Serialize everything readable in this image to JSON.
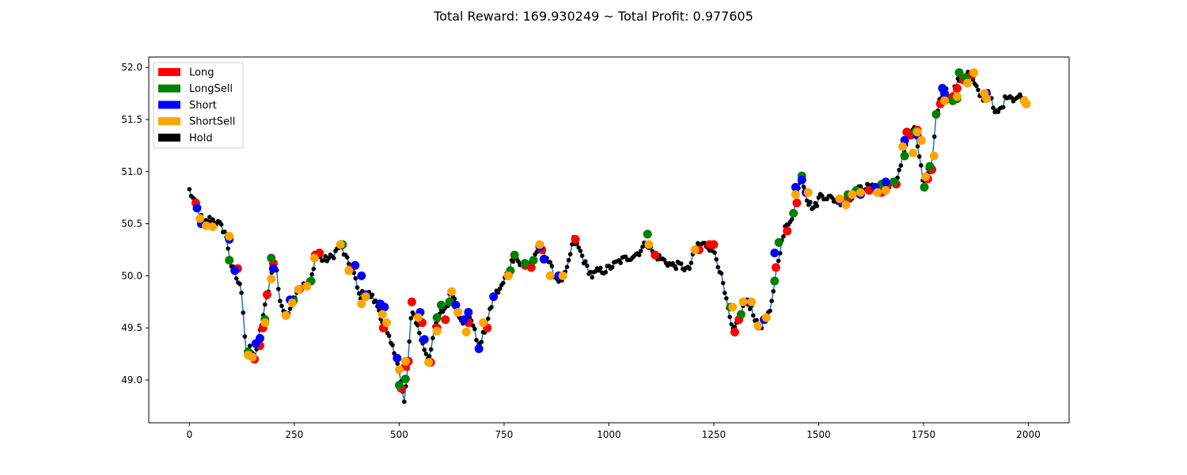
{
  "chart_data": {
    "type": "line",
    "title": "Total Reward: 169.930249 ~ Total Profit: 0.977605",
    "xlabel": "",
    "ylabel": "",
    "xlim": [
      -97,
      2097
    ],
    "ylim": [
      48.59,
      52.1
    ],
    "x_ticks": [
      0,
      250,
      500,
      750,
      1000,
      1250,
      1500,
      1750,
      2000
    ],
    "y_ticks": [
      49.0,
      49.5,
      50.0,
      50.5,
      51.0,
      51.5,
      52.0
    ],
    "grid": false,
    "legend_position": "top-left",
    "line_color": "#1f77b4",
    "price_path": [
      [
        0,
        50.82
      ],
      [
        10,
        50.72
      ],
      [
        20,
        50.62
      ],
      [
        35,
        50.5
      ],
      [
        50,
        50.55
      ],
      [
        70,
        50.5
      ],
      [
        85,
        50.42
      ],
      [
        100,
        50.1
      ],
      [
        115,
        49.95
      ],
      [
        125,
        49.85
      ],
      [
        135,
        49.25
      ],
      [
        145,
        49.3
      ],
      [
        155,
        49.2
      ],
      [
        165,
        49.4
      ],
      [
        175,
        49.6
      ],
      [
        185,
        49.8
      ],
      [
        195,
        50.05
      ],
      [
        205,
        50.15
      ],
      [
        215,
        49.78
      ],
      [
        228,
        49.62
      ],
      [
        240,
        49.7
      ],
      [
        255,
        49.85
      ],
      [
        270,
        49.9
      ],
      [
        290,
        49.95
      ],
      [
        300,
        50.2
      ],
      [
        320,
        50.15
      ],
      [
        340,
        50.18
      ],
      [
        360,
        50.3
      ],
      [
        375,
        50.15
      ],
      [
        390,
        50.05
      ],
      [
        405,
        49.8
      ],
      [
        420,
        49.85
      ],
      [
        435,
        49.8
      ],
      [
        450,
        49.7
      ],
      [
        465,
        49.5
      ],
      [
        480,
        49.35
      ],
      [
        495,
        49.2
      ],
      [
        505,
        48.95
      ],
      [
        512,
        48.78
      ],
      [
        520,
        49.1
      ],
      [
        530,
        49.7
      ],
      [
        545,
        49.5
      ],
      [
        555,
        49.35
      ],
      [
        570,
        49.2
      ],
      [
        585,
        49.5
      ],
      [
        600,
        49.65
      ],
      [
        615,
        49.72
      ],
      [
        625,
        49.88
      ],
      [
        640,
        49.65
      ],
      [
        655,
        49.55
      ],
      [
        670,
        49.62
      ],
      [
        690,
        49.3
      ],
      [
        710,
        49.55
      ],
      [
        725,
        49.8
      ],
      [
        745,
        49.9
      ],
      [
        760,
        50.05
      ],
      [
        775,
        50.2
      ],
      [
        790,
        50.1
      ],
      [
        810,
        50.12
      ],
      [
        825,
        50.18
      ],
      [
        840,
        50.28
      ],
      [
        855,
        50.15
      ],
      [
        870,
        50.0
      ],
      [
        885,
        49.95
      ],
      [
        900,
        50.05
      ],
      [
        915,
        50.35
      ],
      [
        930,
        50.25
      ],
      [
        945,
        50.1
      ],
      [
        960,
        50.0
      ],
      [
        975,
        50.05
      ],
      [
        990,
        50.05
      ],
      [
        1010,
        50.1
      ],
      [
        1030,
        50.15
      ],
      [
        1050,
        50.18
      ],
      [
        1070,
        50.22
      ],
      [
        1090,
        50.32
      ],
      [
        1110,
        50.2
      ],
      [
        1130,
        50.15
      ],
      [
        1150,
        50.1
      ],
      [
        1170,
        50.1
      ],
      [
        1190,
        50.05
      ],
      [
        1210,
        50.3
      ],
      [
        1230,
        50.3
      ],
      [
        1250,
        50.25
      ],
      [
        1265,
        50.05
      ],
      [
        1280,
        49.75
      ],
      [
        1295,
        49.45
      ],
      [
        1310,
        49.6
      ],
      [
        1325,
        49.75
      ],
      [
        1340,
        49.7
      ],
      [
        1355,
        49.5
      ],
      [
        1370,
        49.55
      ],
      [
        1385,
        49.65
      ],
      [
        1395,
        49.95
      ],
      [
        1405,
        50.2
      ],
      [
        1420,
        50.45
      ],
      [
        1440,
        50.6
      ],
      [
        1450,
        50.85
      ],
      [
        1460,
        50.95
      ],
      [
        1475,
        50.7
      ],
      [
        1490,
        50.65
      ],
      [
        1505,
        50.78
      ],
      [
        1525,
        50.75
      ],
      [
        1545,
        50.72
      ],
      [
        1565,
        50.7
      ],
      [
        1585,
        50.8
      ],
      [
        1605,
        50.85
      ],
      [
        1625,
        50.85
      ],
      [
        1645,
        50.8
      ],
      [
        1665,
        50.88
      ],
      [
        1685,
        50.9
      ],
      [
        1700,
        51.15
      ],
      [
        1715,
        51.35
      ],
      [
        1730,
        51.4
      ],
      [
        1742,
        51.1
      ],
      [
        1750,
        50.85
      ],
      [
        1760,
        51.0
      ],
      [
        1770,
        51.05
      ],
      [
        1780,
        51.55
      ],
      [
        1790,
        51.7
      ],
      [
        1800,
        51.8
      ],
      [
        1815,
        51.7
      ],
      [
        1830,
        51.85
      ],
      [
        1845,
        51.92
      ],
      [
        1860,
        51.95
      ],
      [
        1875,
        51.8
      ],
      [
        1890,
        51.7
      ],
      [
        1905,
        51.78
      ],
      [
        1920,
        51.55
      ],
      [
        1935,
        51.6
      ],
      [
        1950,
        51.75
      ],
      [
        1965,
        51.7
      ],
      [
        1980,
        51.72
      ],
      [
        2000,
        51.65
      ]
    ],
    "series": [
      {
        "name": "Long",
        "color": "#ff0000",
        "x": [
          15,
          115,
          155,
          168,
          175,
          185,
          200,
          230,
          262,
          300,
          310,
          385,
          462,
          505,
          515,
          522,
          530,
          555,
          575,
          590,
          610,
          640,
          665,
          710,
          760,
          800,
          815,
          840,
          920,
          1110,
          1215,
          1240,
          1250,
          1300,
          1310,
          1398,
          1425,
          1448,
          1470,
          1570,
          1620,
          1650,
          1665,
          1685,
          1710,
          1720,
          1735,
          1760,
          1770,
          1790,
          1810,
          1820,
          1830,
          1845,
          1865
        ],
        "y": [
          50.7,
          50.07,
          49.2,
          49.33,
          49.5,
          49.82,
          50.12,
          49.62,
          49.87,
          50.2,
          50.22,
          50.07,
          49.5,
          48.92,
          49.13,
          49.18,
          49.75,
          49.55,
          49.17,
          49.5,
          49.58,
          49.65,
          49.55,
          49.5,
          50.0,
          50.1,
          50.08,
          50.25,
          50.35,
          50.2,
          50.25,
          50.3,
          50.3,
          49.46,
          49.58,
          50.08,
          50.43,
          50.7,
          50.8,
          50.75,
          50.82,
          50.8,
          50.88,
          50.88,
          51.38,
          51.35,
          51.4,
          50.93,
          51.02,
          51.65,
          51.7,
          51.72,
          51.8,
          51.88,
          51.93
        ]
      },
      {
        "name": "LongSell",
        "color": "#008000",
        "x": [
          95,
          140,
          180,
          195,
          248,
          290,
          365,
          500,
          515,
          590,
          600,
          620,
          765,
          775,
          800,
          820,
          1092,
          1290,
          1315,
          1395,
          1405,
          1440,
          1460,
          1570,
          1590,
          1650,
          1680,
          1705,
          1730,
          1752,
          1765,
          1780,
          1820,
          1830,
          1835,
          1850
        ],
        "y": [
          50.15,
          49.27,
          49.58,
          50.17,
          49.76,
          49.95,
          50.3,
          48.95,
          49.01,
          49.6,
          49.72,
          49.75,
          50.05,
          50.2,
          50.12,
          50.15,
          50.4,
          49.7,
          49.63,
          49.95,
          50.32,
          50.6,
          50.96,
          50.78,
          50.82,
          50.88,
          50.9,
          51.15,
          51.38,
          50.85,
          51.05,
          51.55,
          51.68,
          51.7,
          51.95,
          51.9
        ]
      },
      {
        "name": "Short",
        "color": "#0000ff",
        "x": [
          18,
          28,
          95,
          108,
          158,
          168,
          200,
          240,
          395,
          410,
          420,
          455,
          465,
          495,
          550,
          560,
          635,
          655,
          665,
          690,
          725,
          835,
          845,
          880,
          1330,
          1370,
          1395,
          1445,
          1460,
          1470,
          1550,
          1600,
          1635,
          1660,
          1705,
          1735,
          1795,
          1800,
          1900
        ],
        "y": [
          50.65,
          50.5,
          50.35,
          50.05,
          49.35,
          49.4,
          50.07,
          49.77,
          50.1,
          50.0,
          49.82,
          49.73,
          49.7,
          49.21,
          49.65,
          49.39,
          49.72,
          49.58,
          49.65,
          49.3,
          49.8,
          50.28,
          50.16,
          50.0,
          49.75,
          49.58,
          50.22,
          50.85,
          50.92,
          50.8,
          50.72,
          50.78,
          50.85,
          50.9,
          51.3,
          51.35,
          51.8,
          51.75,
          51.75
        ]
      },
      {
        "name": "ShortSell",
        "color": "#ffa500",
        "x": [
          25,
          40,
          55,
          95,
          140,
          150,
          180,
          195,
          230,
          245,
          260,
          280,
          298,
          360,
          380,
          410,
          420,
          460,
          470,
          500,
          515,
          545,
          570,
          590,
          625,
          640,
          660,
          700,
          760,
          835,
          860,
          890,
          1095,
          1205,
          1295,
          1320,
          1340,
          1355,
          1375,
          1445,
          1475,
          1550,
          1565,
          1580,
          1600,
          1640,
          1660,
          1700,
          1725,
          1735,
          1745,
          1755,
          1775,
          1800,
          1830,
          1855,
          1870,
          1895,
          1900,
          1990,
          1995
        ],
        "y": [
          50.55,
          50.48,
          50.47,
          50.38,
          49.24,
          49.22,
          49.55,
          49.97,
          49.62,
          49.74,
          49.87,
          49.9,
          50.17,
          50.3,
          50.05,
          49.73,
          49.8,
          49.63,
          49.55,
          49.1,
          49.18,
          49.6,
          49.17,
          49.47,
          49.85,
          49.65,
          49.46,
          49.55,
          50.0,
          50.3,
          50.0,
          50.0,
          50.3,
          50.25,
          49.7,
          49.75,
          49.75,
          49.52,
          49.6,
          50.78,
          50.8,
          50.74,
          50.68,
          50.78,
          50.8,
          50.8,
          50.82,
          51.24,
          51.18,
          51.38,
          51.3,
          50.95,
          51.15,
          51.68,
          51.72,
          51.85,
          51.95,
          51.75,
          51.7,
          51.68,
          51.65
        ]
      }
    ],
    "hold_marker": {
      "name": "Hold",
      "color": "#000000"
    }
  }
}
